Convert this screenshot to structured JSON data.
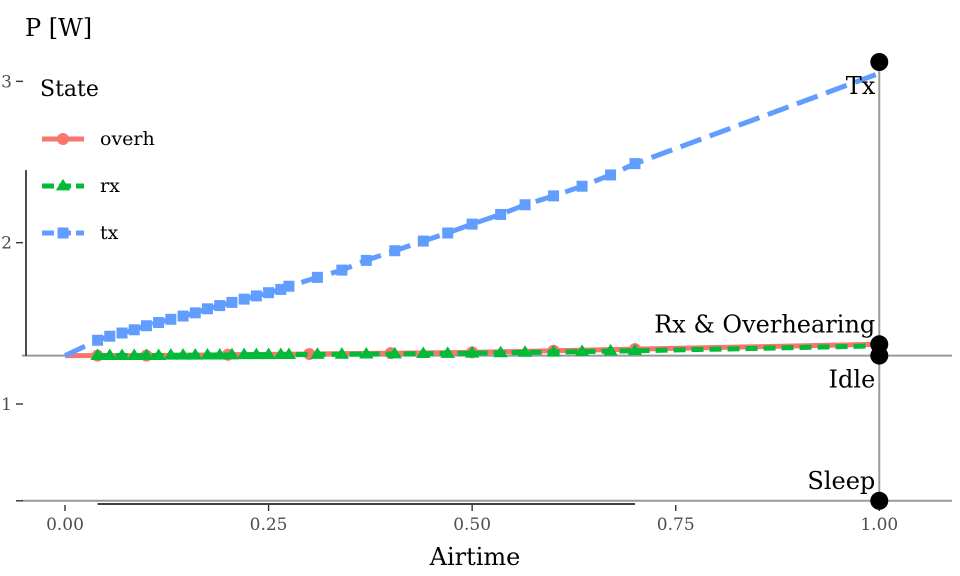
{
  "chart_data": {
    "type": "line",
    "title": "",
    "xlabel": "Airtime",
    "ylabel": "P [W]",
    "xlim": [
      -0.07,
      1.05
    ],
    "ylim": [
      0.38,
      3.12
    ],
    "x_ticks": [
      0.0,
      0.25,
      0.5,
      0.75,
      1.0
    ],
    "x_tick_labels": [
      "0.00",
      "0.25",
      "0.50",
      "0.75",
      "1.00"
    ],
    "y_ticks": [
      1,
      2,
      3
    ],
    "y_tick_labels": [
      "1",
      "2",
      "3"
    ],
    "legend": {
      "title": "State",
      "placement": "top-left"
    },
    "series": [
      {
        "name": "overh",
        "color": "#F8766D",
        "marker": "circle",
        "dash": "solid",
        "points": [
          [
            0.0,
            1.3
          ],
          [
            0.04,
            1.3
          ],
          [
            0.1,
            1.3
          ],
          [
            0.2,
            1.305
          ],
          [
            0.3,
            1.31
          ],
          [
            0.4,
            1.315
          ],
          [
            0.5,
            1.32
          ],
          [
            0.6,
            1.33
          ],
          [
            0.7,
            1.34
          ],
          [
            0.8,
            1.35
          ],
          [
            1.0,
            1.37
          ]
        ]
      },
      {
        "name": "rx",
        "color": "#00BA38",
        "marker": "triangle",
        "dash": "dashed",
        "points": [
          [
            0.04,
            1.3
          ],
          [
            0.055,
            1.3
          ],
          [
            0.07,
            1.3
          ],
          [
            0.085,
            1.3
          ],
          [
            0.1,
            1.3
          ],
          [
            0.115,
            1.3
          ],
          [
            0.13,
            1.302
          ],
          [
            0.145,
            1.302
          ],
          [
            0.16,
            1.302
          ],
          [
            0.175,
            1.303
          ],
          [
            0.19,
            1.303
          ],
          [
            0.205,
            1.304
          ],
          [
            0.22,
            1.305
          ],
          [
            0.235,
            1.305
          ],
          [
            0.25,
            1.305
          ],
          [
            0.265,
            1.306
          ],
          [
            0.275,
            1.306
          ],
          [
            0.31,
            1.307
          ],
          [
            0.34,
            1.308
          ],
          [
            0.37,
            1.309
          ],
          [
            0.405,
            1.31
          ],
          [
            0.44,
            1.312
          ],
          [
            0.47,
            1.313
          ],
          [
            0.5,
            1.315
          ],
          [
            0.535,
            1.317
          ],
          [
            0.565,
            1.32
          ],
          [
            0.6,
            1.322
          ],
          [
            0.635,
            1.325
          ],
          [
            0.67,
            1.328
          ],
          [
            0.7,
            1.33
          ],
          [
            1.0,
            1.36
          ]
        ]
      },
      {
        "name": "tx",
        "color": "#619CFF",
        "marker": "square",
        "dash": "longdash",
        "points": [
          [
            0.0,
            1.3
          ],
          [
            0.04,
            1.395
          ],
          [
            0.055,
            1.42
          ],
          [
            0.07,
            1.44
          ],
          [
            0.085,
            1.46
          ],
          [
            0.1,
            1.485
          ],
          [
            0.115,
            1.505
          ],
          [
            0.13,
            1.525
          ],
          [
            0.145,
            1.545
          ],
          [
            0.16,
            1.565
          ],
          [
            0.175,
            1.59
          ],
          [
            0.19,
            1.61
          ],
          [
            0.205,
            1.63
          ],
          [
            0.22,
            1.65
          ],
          [
            0.235,
            1.67
          ],
          [
            0.25,
            1.69
          ],
          [
            0.265,
            1.71
          ],
          [
            0.275,
            1.73
          ],
          [
            0.31,
            1.785
          ],
          [
            0.34,
            1.83
          ],
          [
            0.37,
            1.89
          ],
          [
            0.405,
            1.95
          ],
          [
            0.44,
            2.01
          ],
          [
            0.47,
            2.06
          ],
          [
            0.5,
            2.115
          ],
          [
            0.535,
            2.175
          ],
          [
            0.565,
            2.235
          ],
          [
            0.6,
            2.29
          ],
          [
            0.635,
            2.35
          ],
          [
            0.67,
            2.42
          ],
          [
            0.7,
            2.49
          ],
          [
            1.0,
            3.05
          ]
        ]
      }
    ],
    "reference_points": [
      {
        "label": "Tx",
        "x": 1.0,
        "y": 3.12,
        "label_side": "below-left"
      },
      {
        "label": "Rx & Overhearing",
        "x": 1.0,
        "y": 1.37,
        "label_side": "above-left"
      },
      {
        "label": "Idle",
        "x": 1.0,
        "y": 1.3,
        "label_side": "below-left"
      },
      {
        "label": "Sleep",
        "x": 1.0,
        "y": 0.4,
        "label_side": "above-left"
      }
    ],
    "reference_lines": {
      "horizontal": [
        1.3,
        0.4
      ],
      "vertical": [
        1.0
      ]
    },
    "grid": false
  }
}
